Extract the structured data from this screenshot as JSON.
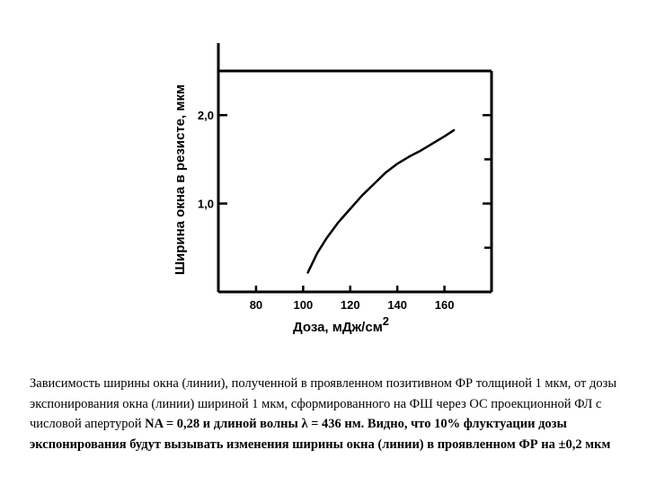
{
  "chart_data": {
    "type": "line",
    "title": "",
    "xlabel": "Доза, мДж/см",
    "xlabel_superscript": "2",
    "ylabel": "Ширина окна в резисте, мкм",
    "xlim": [
      64,
      180
    ],
    "ylim": [
      0,
      2.5
    ],
    "x_ticks": [
      80,
      100,
      120,
      140,
      160
    ],
    "x_tick_labels": [
      "80",
      "100",
      "120",
      "140",
      "160"
    ],
    "y_ticks": [
      1.0,
      2.0
    ],
    "y_tick_labels": [
      "1,0",
      "2,0"
    ],
    "grid": false,
    "series": [
      {
        "x": [
          102,
          106,
          110,
          115,
          120,
          125,
          130,
          135,
          140,
          145,
          150,
          155,
          160,
          164
        ],
        "y": [
          0.22,
          0.44,
          0.61,
          0.79,
          0.94,
          1.09,
          1.22,
          1.35,
          1.45,
          1.53,
          1.6,
          1.68,
          1.76,
          1.83
        ]
      }
    ]
  },
  "caption": {
    "plain": "Зависимость ширины окна (линии), полученной в проявленном позитивном ФР толщиной 1 мкм, от дозы экспонирования окна (линии) шириной 1 мкм, сформированного на ФШ через ОС проекционной ФЛ с числовой апертурой ",
    "bold": "NA = 0,28 и длиной волны λ = 436 нм. Видно, что 10% флуктуации дозы экспонирования будут вызывать изменения ширины окна (линии) в проявленном ФР на ±0,2 мкм"
  }
}
